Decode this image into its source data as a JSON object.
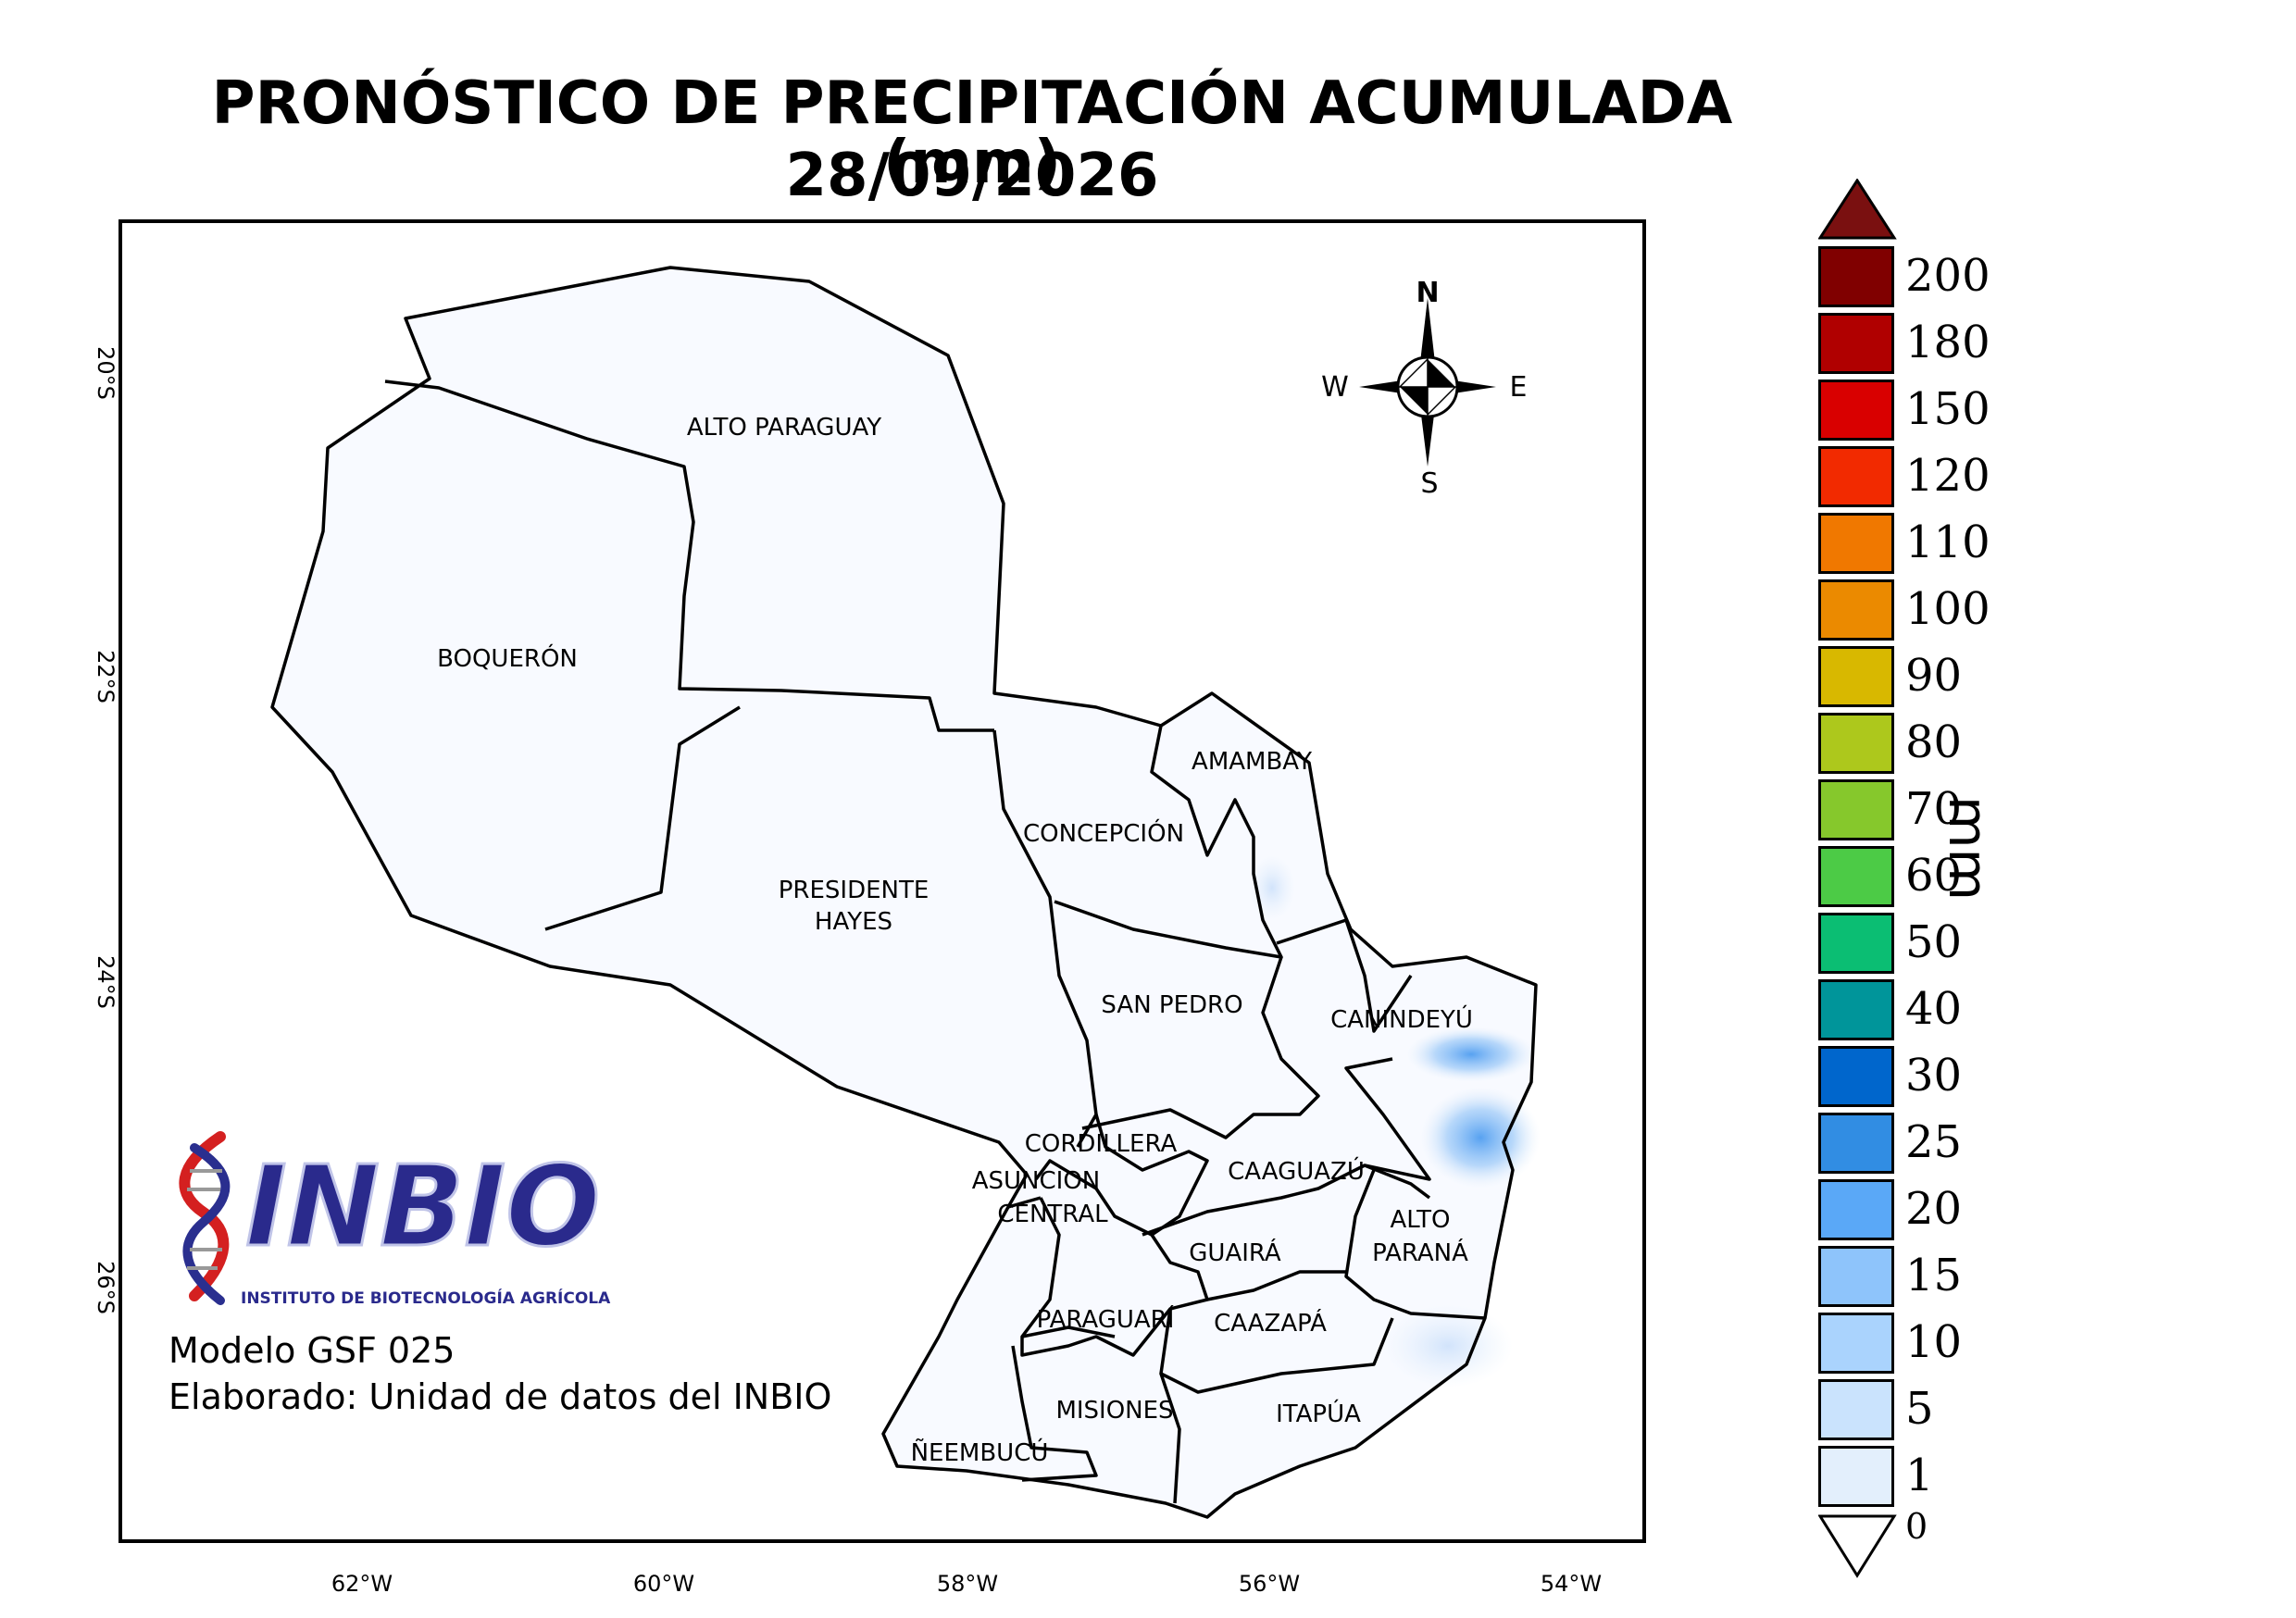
{
  "title": {
    "line1": "PRONÓSTICO DE PRECIPITACIÓN ACUMULADA (mm)",
    "line2": "28/09/2026"
  },
  "axes": {
    "latitudes": [
      "20°S",
      "22°S",
      "24°S",
      "26°S"
    ],
    "longitudes": [
      "62°W",
      "60°W",
      "58°W",
      "56°W",
      "54°W"
    ]
  },
  "compass": {
    "n": "N",
    "s": "S",
    "e": "E",
    "w": "W"
  },
  "departments": {
    "alto_paraguay": "ALTO PARAGUAY",
    "boqueron": "BOQUERÓN",
    "presidente_hayes_1": "PRESIDENTE",
    "presidente_hayes_2": "HAYES",
    "concepcion": "CONCEPCIÓN",
    "amambay": "AMAMBAY",
    "san_pedro": "SAN PEDRO",
    "canindeyu": "CANINDEYÚ",
    "cordillera": "CORDILLERA",
    "asuncion": "ASUNCION",
    "central": "CENTRAL",
    "caaguazu": "CAAGUAZÚ",
    "alto_parana_1": "ALTO",
    "alto_parana_2": "PARANÁ",
    "guaira": "GUAIRÁ",
    "paraguari": "PARAGUARÍ",
    "caazapa": "CAAZAPÁ",
    "misiones": "MISIONES",
    "itapua": "ITAPÚA",
    "neembucu": "ÑEEMBUCÚ"
  },
  "logo": {
    "name": "INBIO",
    "subtitle": "INSTITUTO DE BIOTECNOLOGÍA AGRÍCOLA"
  },
  "credits": {
    "model": "Modelo GSF 025",
    "made_by": "Elaborado: Unidad de datos del INBIO"
  },
  "colorbar": {
    "unit": "mm",
    "top_color": "#7a1010",
    "bottom_label": "0",
    "levels": [
      {
        "label": "200",
        "color": "#800000"
      },
      {
        "label": "180",
        "color": "#b00000"
      },
      {
        "label": "150",
        "color": "#d90000"
      },
      {
        "label": "120",
        "color": "#f22a00"
      },
      {
        "label": "110",
        "color": "#f07800"
      },
      {
        "label": "100",
        "color": "#eb8a00"
      },
      {
        "label": "90",
        "color": "#d8b800"
      },
      {
        "label": "80",
        "color": "#adc81c"
      },
      {
        "label": "70",
        "color": "#86c82c"
      },
      {
        "label": "60",
        "color": "#4ccb46"
      },
      {
        "label": "50",
        "color": "#0bbe73"
      },
      {
        "label": "40",
        "color": "#00959a"
      },
      {
        "label": "30",
        "color": "#0066cc"
      },
      {
        "label": "25",
        "color": "#318de3"
      },
      {
        "label": "20",
        "color": "#5aa8f7"
      },
      {
        "label": "15",
        "color": "#8ec4fb"
      },
      {
        "label": "10",
        "color": "#aad3fd"
      },
      {
        "label": "5",
        "color": "#cae3fd"
      },
      {
        "label": "1",
        "color": "#e3effc"
      }
    ]
  }
}
